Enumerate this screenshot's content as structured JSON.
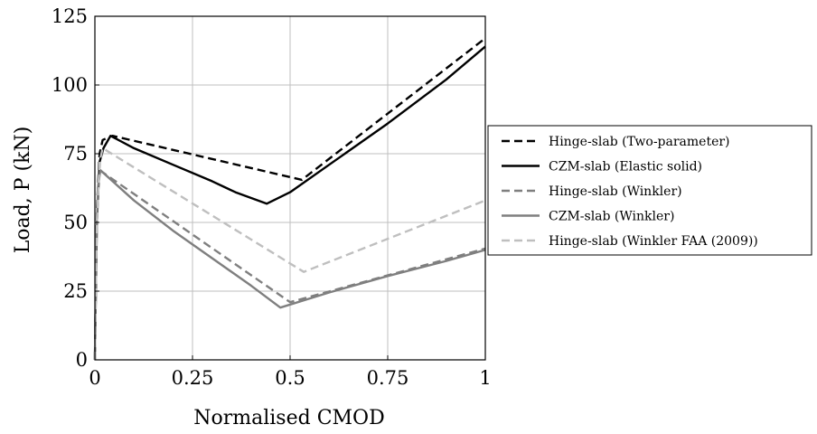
{
  "chart_data": {
    "type": "line",
    "title": "",
    "xlabel": "Normalised CMOD",
    "ylabel": "Load, P (kN)",
    "xlim": [
      0,
      1
    ],
    "ylim": [
      0,
      125
    ],
    "xticks": [
      0,
      0.25,
      0.5,
      0.75,
      1
    ],
    "xtick_labels": [
      "0",
      "0.25",
      "0.5",
      "0.75",
      "1"
    ],
    "yticks": [
      0,
      25,
      50,
      75,
      100,
      125
    ],
    "ytick_labels": [
      "0",
      "25",
      "50",
      "75",
      "100",
      "125"
    ],
    "grid": true,
    "legend_position": "outside-right",
    "series": [
      {
        "name": "Hinge-slab (Two-parameter)",
        "color": "#000000",
        "dash": "dashed",
        "x": [
          0,
          0.005,
          0.012,
          0.02,
          0.045,
          0.53,
          1.0
        ],
        "y": [
          0,
          55,
          75,
          80,
          81.5,
          65.5,
          117
        ]
      },
      {
        "name": "CZM-slab (Elastic solid)",
        "color": "#000000",
        "dash": "solid",
        "x": [
          0,
          0.005,
          0.012,
          0.022,
          0.04,
          0.1,
          0.2,
          0.3,
          0.36,
          0.44,
          0.5,
          0.6,
          0.75,
          0.9,
          1.0
        ],
        "y": [
          0,
          50,
          72,
          77,
          81.5,
          77,
          71,
          65,
          61,
          56.8,
          61,
          71,
          86,
          102,
          114
        ]
      },
      {
        "name": "Hinge-slab (Winkler)",
        "color": "#7f7f7f",
        "dash": "dashed",
        "x": [
          0,
          0.004,
          0.008,
          0.012,
          0.5,
          1.0
        ],
        "y": [
          0,
          45,
          63,
          69,
          21,
          40.5
        ]
      },
      {
        "name": "CZM-slab (Winkler)",
        "color": "#7f7f7f",
        "dash": "solid",
        "x": [
          0,
          0.004,
          0.008,
          0.014,
          0.1,
          0.2,
          0.3,
          0.4,
          0.475,
          0.6,
          0.75,
          0.9,
          1.0
        ],
        "y": [
          0,
          45,
          63,
          69,
          58,
          47,
          37,
          27,
          19,
          24.5,
          30.5,
          36,
          40
        ]
      },
      {
        "name": "Hinge-slab (Winkler FAA (2009))",
        "color": "#bfbfbf",
        "dash": "dashed",
        "x": [
          0,
          0.005,
          0.012,
          0.02,
          0.535,
          1.0
        ],
        "y": [
          0,
          50,
          72,
          77,
          32,
          58
        ]
      }
    ]
  }
}
